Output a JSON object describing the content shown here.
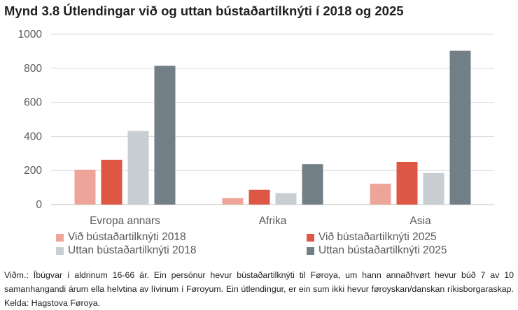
{
  "title": "Mynd 3.8 Útlendingar við og uttan bústaðartilknýti í 2018 og 2025",
  "footnote": "Viðm.: Íbúgvar í aldrinum 16-66 ár. Ein persónur hevur bústaðartilknýti til Føroya, um hann annaðhvørt hevur búð 7 av 10 samanhangandi árum ella helvtina av lívinum í Føroyum. Ein útlendingur, er ein sum ikki hevur føroyskan/danskan ríkisborgaraskap. Kelda: Hagstova Føroya.",
  "chart_data": {
    "type": "bar",
    "categories": [
      "Evropa annars",
      "Afrika",
      "Asia"
    ],
    "series": [
      {
        "name": "Við bústaðartilknýti 2018",
        "values": [
          205,
          38,
          122
        ],
        "color": "#eda59a"
      },
      {
        "name": "Við bústaðartilknýti 2025",
        "values": [
          263,
          87,
          250
        ],
        "color": "#de5744"
      },
      {
        "name": "Uttan bústaðartilknýti 2018",
        "values": [
          432,
          67,
          185
        ],
        "color": "#c8ced2"
      },
      {
        "name": "Uttan bústaðartilknýti 2025",
        "values": [
          815,
          237,
          903
        ],
        "color": "#737f86"
      }
    ],
    "ylim": [
      0,
      1000
    ],
    "yticks": [
      "0",
      "200",
      "400",
      "600",
      "800",
      "1000"
    ],
    "grid": true,
    "legend_position": "bottom"
  }
}
